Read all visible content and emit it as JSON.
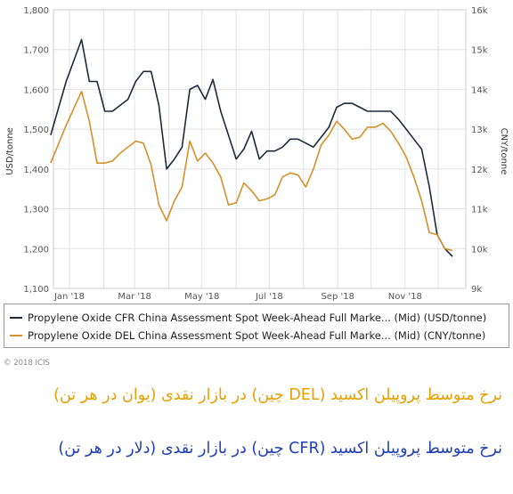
{
  "colors": {
    "cfr": "#1c2a3a",
    "del": "#d4902a",
    "grid": "#e0e0e0",
    "caption_del": "#e8a000",
    "caption_cfr": "#1f3fb5"
  },
  "chart_data": {
    "type": "line",
    "x_ticks": [
      "Jan '18",
      "Mar '18",
      "May '18",
      "Jul '18",
      "Sep '18",
      "Nov '18"
    ],
    "y_left": {
      "label": "USD/tonne",
      "range": [
        1100,
        1800
      ],
      "ticks": [
        "1,100",
        "1,200",
        "1,300",
        "1,400",
        "1,500",
        "1,600",
        "1,700",
        "1,800"
      ]
    },
    "y_right": {
      "label": "CNY/tonne",
      "range": [
        9000,
        16000
      ],
      "ticks": [
        "9k",
        "10k",
        "11k",
        "12k",
        "13k",
        "14k",
        "15k",
        "16k"
      ]
    },
    "grid": true,
    "legend_position": "bottom",
    "series": [
      {
        "name": "Propylene Oxide CFR China Assessment Spot Week-Ahead Full Marke... (Mid) (USD/tonne)",
        "axis": "left",
        "x": [
          "2017-12-15",
          "2017-12-29",
          "2018-01-12",
          "2018-01-19",
          "2018-01-26",
          "2018-02-02",
          "2018-02-09",
          "2018-02-16",
          "2018-02-23",
          "2018-03-02",
          "2018-03-09",
          "2018-03-16",
          "2018-03-23",
          "2018-03-30",
          "2018-04-06",
          "2018-04-13",
          "2018-04-20",
          "2018-04-27",
          "2018-05-04",
          "2018-05-11",
          "2018-05-18",
          "2018-05-25",
          "2018-06-01",
          "2018-06-08",
          "2018-06-15",
          "2018-06-22",
          "2018-06-29",
          "2018-07-06",
          "2018-07-13",
          "2018-07-20",
          "2018-07-27",
          "2018-08-03",
          "2018-08-10",
          "2018-08-17",
          "2018-08-24",
          "2018-08-31",
          "2018-09-07",
          "2018-09-14",
          "2018-09-21",
          "2018-09-28",
          "2018-10-05",
          "2018-10-12",
          "2018-10-19",
          "2018-10-26",
          "2018-11-02",
          "2018-11-09",
          "2018-11-16",
          "2018-11-23",
          "2018-11-30",
          "2018-12-07",
          "2018-12-14"
        ],
        "values": [
          1485,
          1620,
          1725,
          1620,
          1620,
          1545,
          1545,
          1560,
          1575,
          1620,
          1645,
          1645,
          1560,
          1400,
          1425,
          1455,
          1600,
          1610,
          1575,
          1625,
          1545,
          1485,
          1425,
          1450,
          1495,
          1425,
          1445,
          1445,
          1455,
          1475,
          1475,
          1465,
          1455,
          1480,
          1505,
          1555,
          1565,
          1565,
          1555,
          1545,
          1545,
          1545,
          1545,
          1525,
          1500,
          1475,
          1450,
          1355,
          1235,
          1200,
          1180
        ]
      },
      {
        "name": "Propylene Oxide DEL China Assessment Spot Week-Ahead Full Marke... (Mid) (CNY/tonne)",
        "axis": "right",
        "x": [
          "2017-12-15",
          "2017-12-29",
          "2018-01-12",
          "2018-01-19",
          "2018-01-26",
          "2018-02-02",
          "2018-02-09",
          "2018-02-16",
          "2018-02-23",
          "2018-03-02",
          "2018-03-09",
          "2018-03-16",
          "2018-03-23",
          "2018-03-30",
          "2018-04-06",
          "2018-04-13",
          "2018-04-20",
          "2018-04-27",
          "2018-05-04",
          "2018-05-11",
          "2018-05-18",
          "2018-05-25",
          "2018-06-01",
          "2018-06-08",
          "2018-06-15",
          "2018-06-22",
          "2018-06-29",
          "2018-07-06",
          "2018-07-13",
          "2018-07-20",
          "2018-07-27",
          "2018-08-03",
          "2018-08-10",
          "2018-08-17",
          "2018-08-24",
          "2018-08-31",
          "2018-09-07",
          "2018-09-14",
          "2018-09-21",
          "2018-09-28",
          "2018-10-05",
          "2018-10-12",
          "2018-10-19",
          "2018-10-26",
          "2018-11-02",
          "2018-11-09",
          "2018-11-16",
          "2018-11-23",
          "2018-11-30",
          "2018-12-07",
          "2018-12-14"
        ],
        "values": [
          12150,
          13100,
          13950,
          13200,
          12150,
          12150,
          12200,
          12400,
          12550,
          12700,
          12650,
          12100,
          11100,
          10700,
          11200,
          11550,
          12700,
          12200,
          12400,
          12150,
          11800,
          11100,
          11150,
          11650,
          11450,
          11200,
          11250,
          11350,
          11800,
          11900,
          11850,
          11550,
          12000,
          12600,
          12850,
          13200,
          13000,
          12750,
          12800,
          13050,
          13050,
          13150,
          12950,
          12650,
          12300,
          11800,
          11200,
          10400,
          10350,
          10000,
          9950
        ]
      }
    ]
  },
  "copyright": "© 2018 ICIS",
  "captions": {
    "del": "نرخ متوسط پروپیلن اکسید (DEL چین) در بازار نقدی (یوان در هر تن)",
    "cfr": "نرخ متوسط پروپیلن اکسید (CFR چین) در بازار نقدی (دلار در هر تن)"
  }
}
